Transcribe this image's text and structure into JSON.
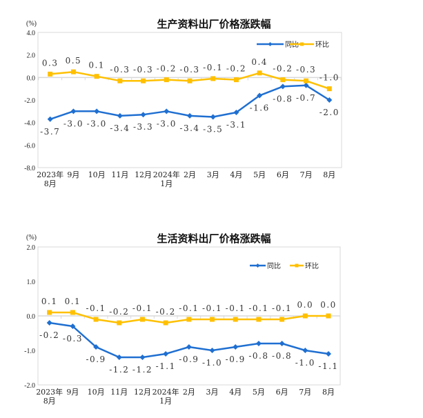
{
  "chart_data": [
    {
      "type": "line",
      "title": "生产资料出厂价格涨跌幅",
      "ylabel": "(%)",
      "ylim": [
        -8,
        4
      ],
      "yticks": [
        "4.0",
        "2.0",
        "0.0",
        "-2.0",
        "-4.0",
        "-6.0",
        "-8.0"
      ],
      "ytick_values": [
        4,
        2,
        0,
        -2,
        -4,
        -6,
        -8
      ],
      "categories": [
        [
          "2023年",
          "8月"
        ],
        [
          "9月"
        ],
        [
          "10月"
        ],
        [
          "11月"
        ],
        [
          "12月"
        ],
        [
          "2024年",
          "1月"
        ],
        [
          "2月"
        ],
        [
          "3月"
        ],
        [
          "4月"
        ],
        [
          "5月"
        ],
        [
          "6月"
        ],
        [
          "7月"
        ],
        [
          "8月"
        ]
      ],
      "legend_position": "top-right",
      "series": [
        {
          "name": "同比",
          "color": "#1f6fd1",
          "marker": "diamond",
          "label_side": "below",
          "values": [
            -3.7,
            -3.0,
            -3.0,
            -3.4,
            -3.3,
            -3.0,
            -3.4,
            -3.5,
            -3.1,
            -1.6,
            -0.8,
            -0.7,
            -2.0
          ],
          "labels": [
            "-3.7",
            "-3.0",
            "-3.0",
            "-3.4",
            "-3.3",
            "-3.0",
            "-3.4",
            "-3.5",
            "-3.1",
            "-1.6",
            "-0.8",
            "-0.7",
            "-2.0"
          ]
        },
        {
          "name": "环比",
          "color": "#ffc000",
          "marker": "square",
          "label_side": "above",
          "values": [
            0.3,
            0.5,
            0.1,
            -0.3,
            -0.3,
            -0.2,
            -0.3,
            -0.1,
            -0.2,
            0.4,
            -0.2,
            -0.3,
            -1.0
          ],
          "labels": [
            "0.3",
            "0.5",
            "0.1",
            "-0.3",
            "-0.3",
            "-0.2",
            "-0.3",
            "-0.1",
            "-0.2",
            "0.4",
            "-0.2",
            "-0.3",
            "-1.0"
          ]
        }
      ]
    },
    {
      "type": "line",
      "title": "生活资料出厂价格涨跌幅",
      "ylabel": "(%)",
      "ylim": [
        -2,
        2
      ],
      "yticks": [
        "2.0",
        "1.0",
        "0.0",
        "-1.0",
        "-2.0"
      ],
      "ytick_values": [
        2,
        1,
        0,
        -1,
        -2
      ],
      "categories": [
        [
          "2023年",
          "8月"
        ],
        [
          "9月"
        ],
        [
          "10月"
        ],
        [
          "11月"
        ],
        [
          "12月"
        ],
        [
          "2024年",
          "1月"
        ],
        [
          "2月"
        ],
        [
          "3月"
        ],
        [
          "4月"
        ],
        [
          "5月"
        ],
        [
          "6月"
        ],
        [
          "7月"
        ],
        [
          "8月"
        ]
      ],
      "legend_position": "top-right",
      "series": [
        {
          "name": "同比",
          "color": "#1f6fd1",
          "marker": "diamond",
          "label_side": "below",
          "values": [
            -0.2,
            -0.3,
            -0.9,
            -1.2,
            -1.2,
            -1.1,
            -0.9,
            -1.0,
            -0.9,
            -0.8,
            -0.8,
            -1.0,
            -1.1
          ],
          "labels": [
            "-0.2",
            "-0.3",
            "-0.9",
            "-1.2",
            "-1.2",
            "-1.1",
            "-0.9",
            "-1.0",
            "-0.9",
            "-0.8",
            "-0.8",
            "-1.0",
            "-1.1"
          ]
        },
        {
          "name": "环比",
          "color": "#ffc000",
          "marker": "square",
          "label_side": "above",
          "values": [
            0.1,
            0.1,
            -0.1,
            -0.2,
            -0.1,
            -0.2,
            -0.1,
            -0.1,
            -0.1,
            -0.1,
            -0.1,
            0.0,
            0.0
          ],
          "labels": [
            "0.1",
            "0.1",
            "-0.1",
            "-0.2",
            "-0.1",
            "-0.2",
            "-0.1",
            "-0.1",
            "-0.1",
            "-0.1",
            "-0.1",
            "0.0",
            "0.0"
          ]
        }
      ]
    }
  ]
}
